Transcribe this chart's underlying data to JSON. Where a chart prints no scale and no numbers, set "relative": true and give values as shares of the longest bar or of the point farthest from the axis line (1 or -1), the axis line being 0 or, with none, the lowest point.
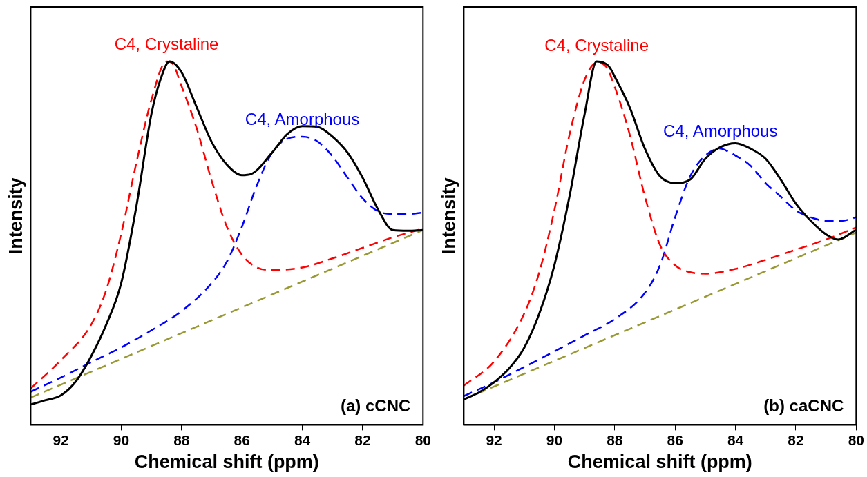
{
  "chart_data": [
    {
      "type": "line",
      "xlabel": "Chemical shift (ppm)",
      "ylabel": "Intensity",
      "relative": true,
      "xlim": [
        93,
        80
      ],
      "xticks": [
        92,
        90,
        88,
        86,
        84,
        82,
        80
      ],
      "tick_labels": "x",
      "grid": false,
      "legend": false,
      "marker": "none",
      "annotations": [
        "(a) cCNC"
      ],
      "series": [
        {
          "color": "#000000",
          "line_style": "solid",
          "x": [
            93,
            92.5,
            92,
            91.5,
            91,
            90.5,
            90,
            89.5,
            89,
            88.7,
            88.4,
            88,
            87.5,
            87,
            86.5,
            86,
            85.7,
            85,
            84.5,
            84,
            83.5,
            83,
            82.5,
            82,
            81.5,
            81,
            80.5,
            80
          ],
          "values": [
            0.056,
            0.068,
            0.081,
            0.12,
            0.188,
            0.275,
            0.39,
            0.6,
            0.855,
            0.95,
            1,
            0.97,
            0.874,
            0.778,
            0.716,
            0.687,
            0.69,
            0.749,
            0.8,
            0.822,
            0.82,
            0.793,
            0.749,
            0.68,
            0.594,
            0.536,
            0.534,
            0.536
          ]
        },
        {
          "name": "C4, Crystaline",
          "color": "#ff0000",
          "line_style": "dashed",
          "x": [
            93,
            92,
            91,
            90.5,
            90,
            89.5,
            89,
            88.5,
            88.3,
            88,
            87.5,
            87,
            86.5,
            86,
            85.5,
            85,
            84,
            83,
            82,
            81,
            80
          ],
          "values": [
            0.1,
            0.178,
            0.275,
            0.37,
            0.526,
            0.72,
            0.894,
            1,
            0.994,
            0.932,
            0.816,
            0.671,
            0.545,
            0.468,
            0.433,
            0.426,
            0.433,
            0.458,
            0.487,
            0.516,
            0.54
          ]
        },
        {
          "name": "C4, Amorphous",
          "color": "#0000ff",
          "line_style": "dashed",
          "x": [
            93,
            92,
            91,
            90,
            89,
            88,
            87,
            86.5,
            86,
            85.5,
            85,
            84.5,
            84,
            83.5,
            83,
            82.5,
            82,
            81.5,
            81,
            80.5,
            80
          ],
          "values": [
            0.091,
            0.13,
            0.172,
            0.213,
            0.26,
            0.313,
            0.39,
            0.449,
            0.545,
            0.66,
            0.749,
            0.787,
            0.793,
            0.78,
            0.739,
            0.68,
            0.623,
            0.588,
            0.58,
            0.58,
            0.584
          ]
        },
        {
          "color": "#999933",
          "line_style": "dashed",
          "x": [
            93,
            80
          ],
          "values": [
            0.075,
            0.536
          ]
        }
      ]
    },
    {
      "type": "line",
      "xlabel": "Chemical shift (ppm)",
      "ylabel": "Intensity",
      "relative": true,
      "xlim": [
        93,
        80
      ],
      "xticks": [
        92,
        90,
        88,
        86,
        84,
        82,
        80
      ],
      "tick_labels": "x",
      "grid": false,
      "legend": false,
      "marker": "none",
      "annotations": [
        "(b) caCNC"
      ],
      "series": [
        {
          "color": "#000000",
          "line_style": "solid",
          "x": [
            93,
            92.5,
            92,
            91.5,
            91,
            90.5,
            90,
            89.5,
            89,
            88.6,
            88.2,
            88,
            87.5,
            87,
            86.5,
            86,
            85.5,
            85,
            84.5,
            84,
            83.5,
            83,
            82.5,
            82,
            81.5,
            81,
            80.6,
            80
          ],
          "values": [
            0.07,
            0.089,
            0.117,
            0.155,
            0.212,
            0.306,
            0.439,
            0.628,
            0.854,
            1,
            0.987,
            0.958,
            0.873,
            0.76,
            0.684,
            0.665,
            0.675,
            0.732,
            0.764,
            0.775,
            0.76,
            0.732,
            0.675,
            0.609,
            0.561,
            0.524,
            0.51,
            0.537
          ]
        },
        {
          "name": "C4, Crystaline",
          "color": "#ff0000",
          "line_style": "dashed",
          "x": [
            93,
            92,
            91,
            90.5,
            90,
            89.5,
            89,
            88.6,
            88.3,
            88,
            87.5,
            87,
            86.5,
            86,
            85.5,
            85,
            84,
            83,
            82,
            81,
            80
          ],
          "values": [
            0.108,
            0.174,
            0.306,
            0.42,
            0.59,
            0.798,
            0.949,
            0.996,
            0.987,
            0.93,
            0.798,
            0.628,
            0.495,
            0.439,
            0.42,
            0.416,
            0.429,
            0.454,
            0.482,
            0.51,
            0.543
          ]
        },
        {
          "name": "C4, Amorphous",
          "color": "#0000ff",
          "line_style": "dashed",
          "x": [
            93,
            92,
            91,
            90,
            89,
            88,
            87,
            86.5,
            86,
            85.5,
            85,
            84.5,
            84.2,
            84,
            83.5,
            83,
            82.5,
            82,
            81.5,
            81,
            80.5,
            80
          ],
          "values": [
            0.079,
            0.117,
            0.159,
            0.202,
            0.246,
            0.291,
            0.363,
            0.439,
            0.571,
            0.684,
            0.741,
            0.76,
            0.75,
            0.741,
            0.713,
            0.665,
            0.628,
            0.59,
            0.571,
            0.561,
            0.561,
            0.571
          ]
        },
        {
          "color": "#999933",
          "line_style": "dashed",
          "x": [
            93,
            80
          ],
          "values": [
            0.07,
            0.529
          ]
        }
      ]
    }
  ]
}
